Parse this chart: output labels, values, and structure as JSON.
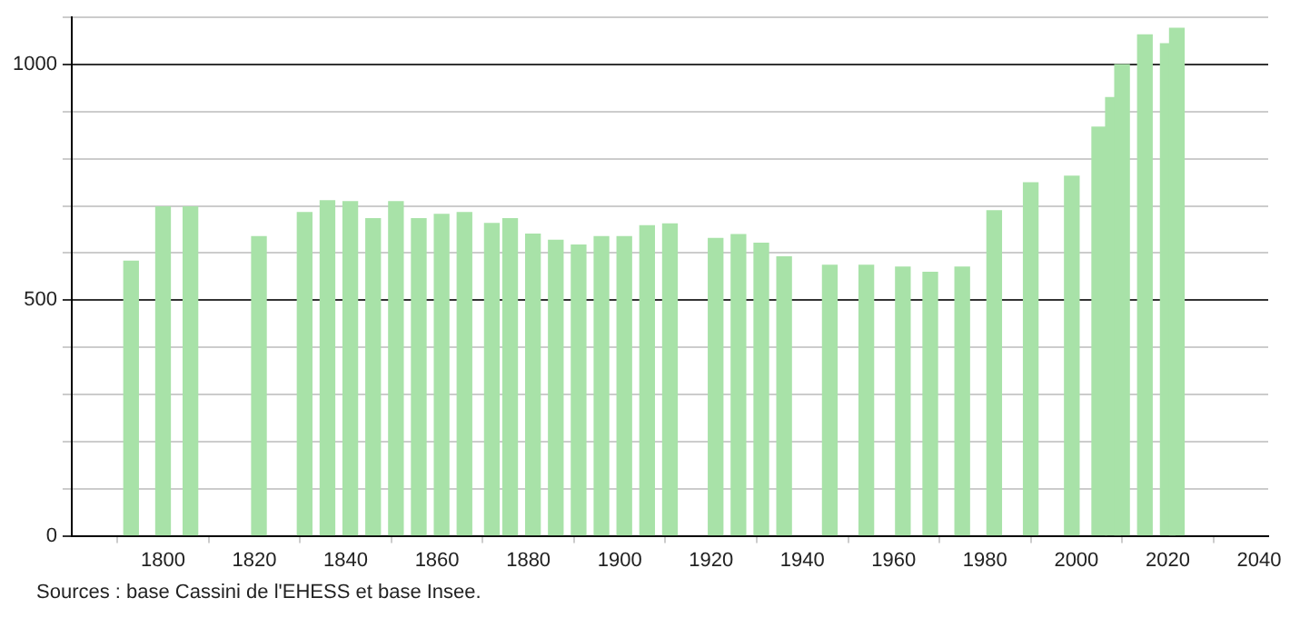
{
  "chart_data": {
    "type": "bar",
    "x": [
      1793,
      1800,
      1806,
      1821,
      1831,
      1836,
      1841,
      1846,
      1851,
      1856,
      1861,
      1866,
      1872,
      1876,
      1881,
      1886,
      1891,
      1896,
      1901,
      1906,
      1911,
      1921,
      1926,
      1931,
      1936,
      1946,
      1954,
      1962,
      1968,
      1975,
      1982,
      1990,
      1999,
      2005,
      2008,
      2010,
      2015,
      2020,
      2022
    ],
    "values": [
      583,
      698,
      698,
      635,
      686,
      711,
      709,
      673,
      709,
      673,
      682,
      686,
      663,
      673,
      640,
      627,
      617,
      635,
      635,
      658,
      662,
      631,
      639,
      621,
      592,
      574,
      574,
      570,
      559,
      570,
      690,
      749,
      763,
      867,
      930,
      1000,
      1063,
      1044,
      1077
    ],
    "color": "#a8e2a8",
    "xlim": [
      1780,
      2042
    ],
    "xticks": [
      1800,
      1820,
      1840,
      1860,
      1880,
      1900,
      1920,
      1940,
      1960,
      1980,
      2000,
      2020,
      2040
    ],
    "ylim": [
      0,
      1100
    ],
    "yticks": [
      0,
      {
        "value": 100,
        "label": null
      },
      {
        "value": 200,
        "label": null
      },
      {
        "value": 300,
        "label": null
      },
      {
        "value": 400,
        "label": null
      },
      500,
      {
        "value": 600,
        "label": null
      },
      {
        "value": 700,
        "label": null
      },
      {
        "value": 800,
        "label": null
      },
      {
        "value": 900,
        "label": null
      },
      1000,
      {
        "value": 1100,
        "label": null
      }
    ],
    "grid": "y",
    "legend": false,
    "annotations": [
      "Sources : base Cassini de l'EHESS et base Insee."
    ]
  }
}
